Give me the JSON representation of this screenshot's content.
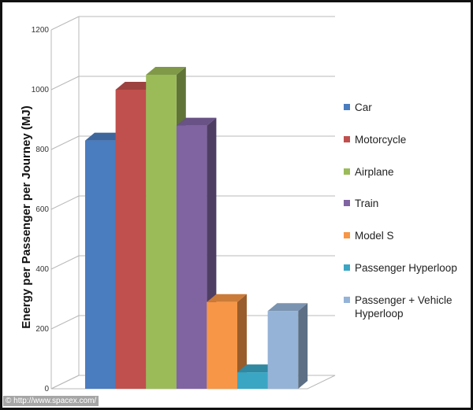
{
  "chart_data": {
    "type": "bar",
    "title": "",
    "xlabel": "",
    "ylabel": "Energy per Passenger per Journey (MJ)",
    "ylim": [
      0,
      1200
    ],
    "yticks": [
      0,
      200,
      400,
      600,
      800,
      1000,
      1200
    ],
    "grid": true,
    "legend_position": "right",
    "three_d": true,
    "series": [
      {
        "name": "Car",
        "value": 830,
        "color": "#4a7cc0"
      },
      {
        "name": "Motorcycle",
        "value": 1000,
        "color": "#c0504d"
      },
      {
        "name": "Airplane",
        "value": 1050,
        "color": "#9bbb59"
      },
      {
        "name": "Train",
        "value": 880,
        "color": "#8064a2"
      },
      {
        "name": "Model S",
        "value": 290,
        "color": "#f79646"
      },
      {
        "name": "Passenger Hyperloop",
        "value": 55,
        "color": "#3aa6c4"
      },
      {
        "name": "Passenger + Vehicle Hyperloop",
        "value": 260,
        "color": "#95b3d7"
      }
    ]
  },
  "legend": {
    "items": [
      {
        "lines": [
          "Car"
        ],
        "color": "#4a7cc0"
      },
      {
        "lines": [
          "Motorcycle"
        ],
        "color": "#c0504d"
      },
      {
        "lines": [
          "Airplane"
        ],
        "color": "#9bbb59"
      },
      {
        "lines": [
          "Train"
        ],
        "color": "#8064a2"
      },
      {
        "lines": [
          "Model S"
        ],
        "color": "#f79646"
      },
      {
        "lines": [
          "Passenger Hyperloop"
        ],
        "color": "#3aa6c4"
      },
      {
        "lines": [
          "Passenger + Vehicle",
          "Hyperloop"
        ],
        "color": "#95b3d7"
      }
    ]
  },
  "credit": "© http://www.spacex.com/"
}
